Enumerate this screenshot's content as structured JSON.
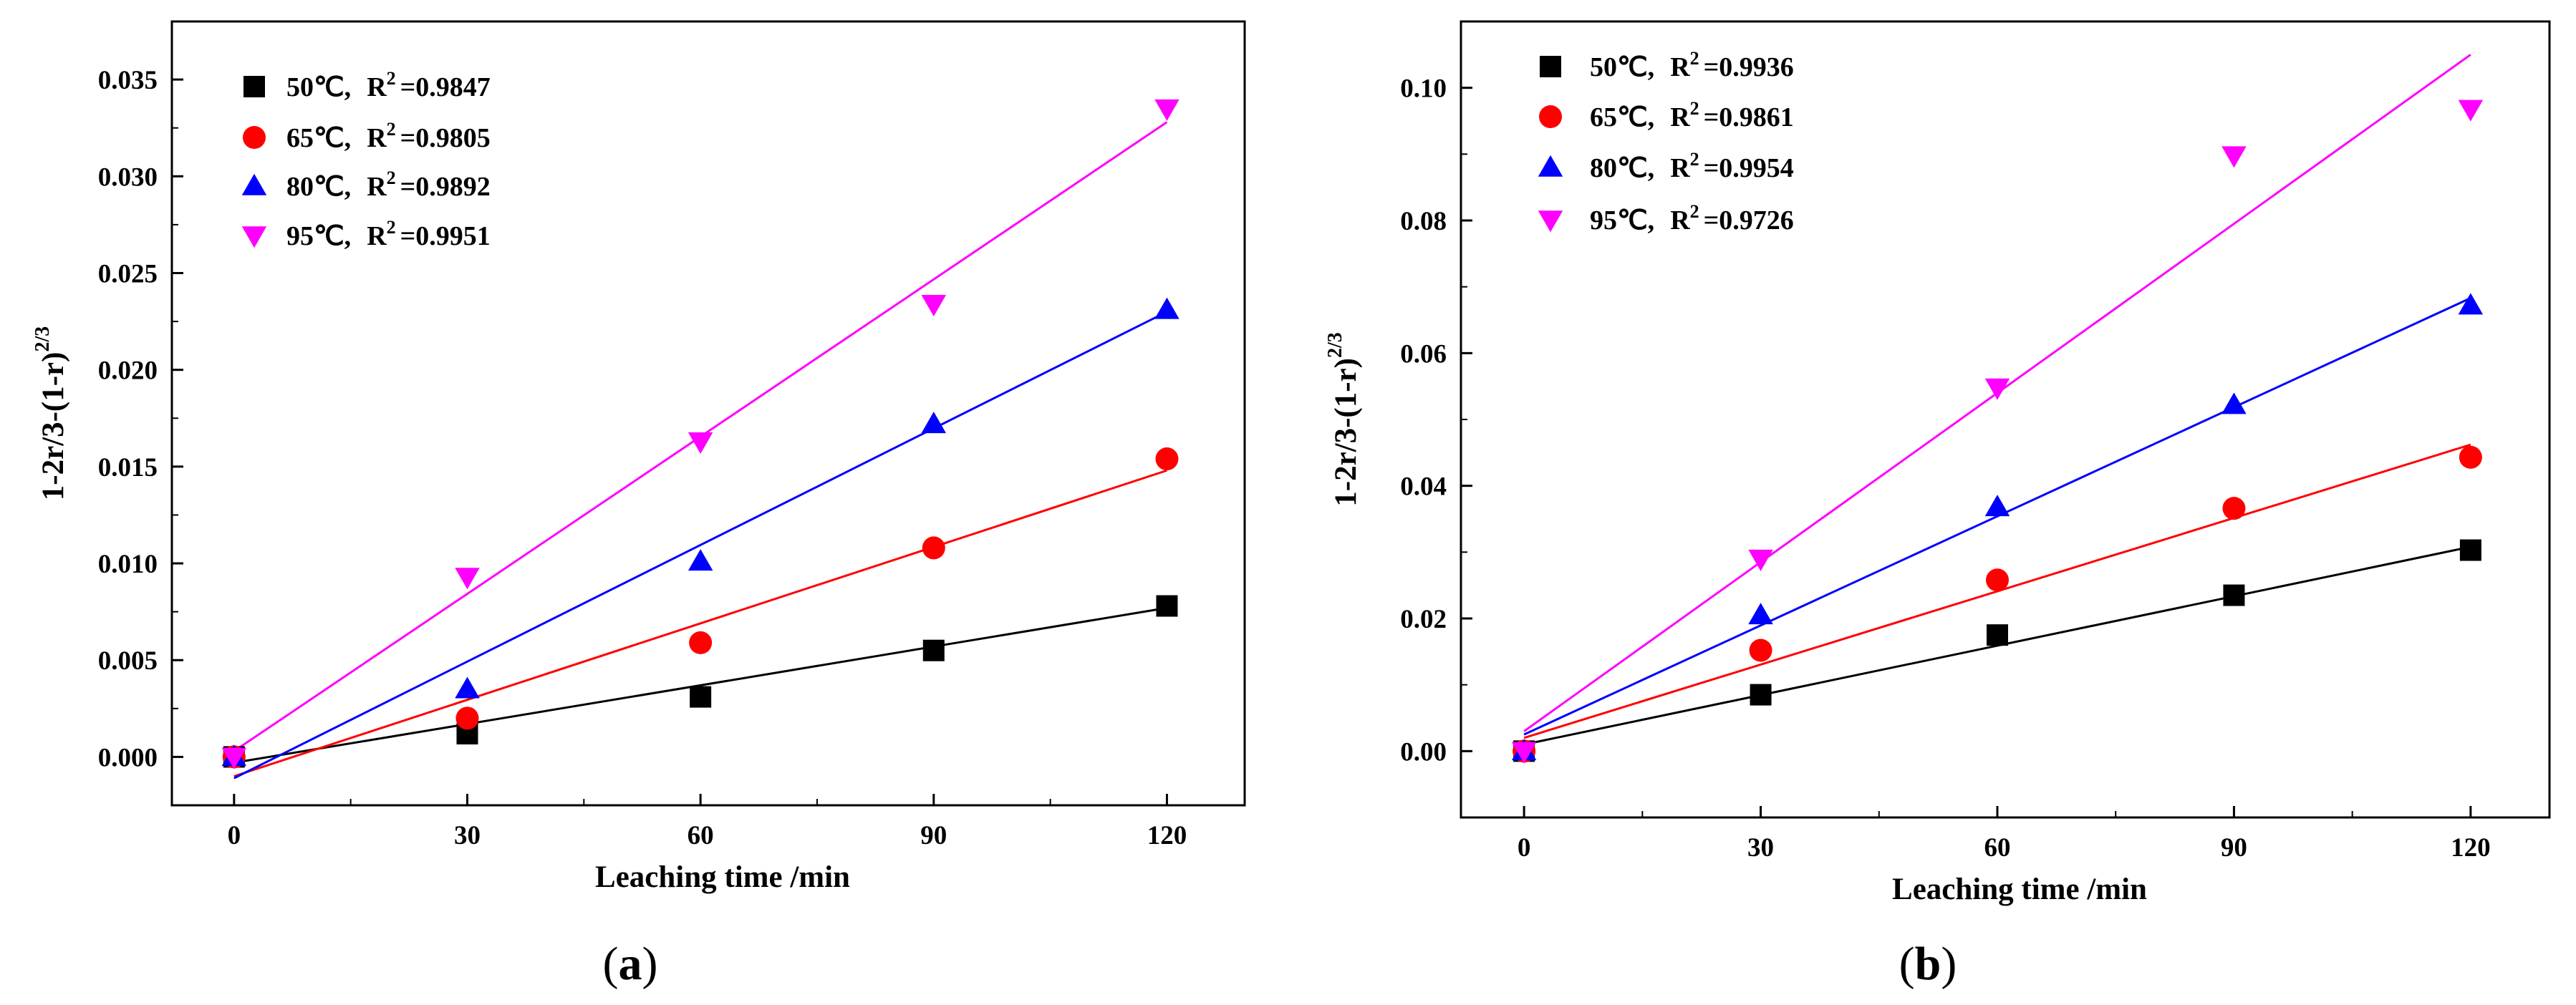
{
  "colors": {
    "black": "#000000",
    "red": "#ff0000",
    "blue": "#0000ff",
    "magenta": "#ff00ff"
  },
  "chart_data": [
    {
      "type": "scatter",
      "panel_label": "a",
      "xlabel": "Leaching time /min",
      "ylabel_main": "1-2r/3-(1-r)",
      "ylabel_exp": "2/3",
      "xlim": [
        -8,
        130
      ],
      "ylim": [
        -0.0025,
        0.038
      ],
      "x_ticks": [
        0,
        30,
        60,
        90,
        120
      ],
      "x_tick_labels": [
        "0",
        "30",
        "60",
        "90",
        "120"
      ],
      "y_ticks": [
        0,
        0.005,
        0.01,
        0.015,
        0.02,
        0.025,
        0.03,
        0.035
      ],
      "y_tick_labels": [
        "0.000",
        "0.005",
        "0.010",
        "0.015",
        "0.020",
        "0.025",
        "0.030",
        "0.035"
      ],
      "x": [
        0,
        30,
        60,
        90,
        120
      ],
      "legend_position": "top-left",
      "series": [
        {
          "name": "50℃",
          "temp": "50℃,",
          "r2_prefix": "R",
          "r2_sup": "2",
          "r2_value": "=0.9847",
          "color": "#000000",
          "marker": "square",
          "values": [
            0.0,
            0.0012,
            0.0031,
            0.0055,
            0.0078
          ],
          "fit": [
            -0.0003,
            0.0077
          ]
        },
        {
          "name": "65℃",
          "temp": "65℃,",
          "r2_prefix": "R",
          "r2_sup": "2",
          "r2_value": "=0.9805",
          "color": "#ff0000",
          "marker": "circle",
          "values": [
            0.0,
            0.002,
            0.0059,
            0.0108,
            0.0154
          ],
          "fit": [
            -0.001,
            0.0148
          ]
        },
        {
          "name": "80℃",
          "temp": "80℃,",
          "r2_prefix": "R",
          "r2_sup": "2",
          "r2_value": "=0.9892",
          "color": "#0000ff",
          "marker": "triangle-up",
          "values": [
            0.0,
            0.0035,
            0.0101,
            0.0172,
            0.0231
          ],
          "fit": [
            -0.0011,
            0.023
          ]
        },
        {
          "name": "95℃",
          "temp": "95℃,",
          "r2_prefix": "R",
          "r2_sup": "2",
          "r2_value": "=0.9951",
          "color": "#ff00ff",
          "marker": "triangle-down",
          "values": [
            0.0,
            0.0093,
            0.0163,
            0.0234,
            0.0335
          ],
          "fit": [
            0.0003,
            0.0328
          ]
        }
      ]
    },
    {
      "type": "scatter",
      "panel_label": "b",
      "xlabel": "Leaching time /min",
      "ylabel_main": "1-2r/3-(1-r)",
      "ylabel_exp": "2/3",
      "xlim": [
        -8,
        130
      ],
      "ylim": [
        -0.01,
        0.11
      ],
      "x_ticks": [
        0,
        30,
        60,
        90,
        120
      ],
      "x_tick_labels": [
        "0",
        "30",
        "60",
        "90",
        "120"
      ],
      "y_ticks": [
        0,
        0.02,
        0.04,
        0.06,
        0.08,
        0.1
      ],
      "y_tick_labels": [
        "0.00",
        "0.02",
        "0.04",
        "0.06",
        "0.08",
        "0.10"
      ],
      "x": [
        0,
        30,
        60,
        90,
        120
      ],
      "legend_position": "top-left",
      "series": [
        {
          "name": "50℃",
          "temp": "50℃,",
          "r2_prefix": "R",
          "r2_sup": "2",
          "r2_value": "=0.9936",
          "color": "#000000",
          "marker": "square",
          "values": [
            0.0,
            0.0085,
            0.0175,
            0.0235,
            0.0303
          ],
          "fit": [
            0.001,
            0.0308
          ]
        },
        {
          "name": "65℃",
          "temp": "65℃,",
          "r2_prefix": "R",
          "r2_sup": "2",
          "r2_value": "=0.9861",
          "color": "#ff0000",
          "marker": "circle",
          "values": [
            0.0,
            0.0152,
            0.0258,
            0.0366,
            0.0443
          ],
          "fit": [
            0.002,
            0.0462
          ]
        },
        {
          "name": "80℃",
          "temp": "80℃,",
          "r2_prefix": "R",
          "r2_sup": "2",
          "r2_value": "=0.9954",
          "color": "#0000ff",
          "marker": "triangle-up",
          "values": [
            0.0,
            0.0205,
            0.0368,
            0.0522,
            0.0672
          ],
          "fit": [
            0.0025,
            0.0683
          ]
        },
        {
          "name": "95℃",
          "temp": "95℃,",
          "r2_prefix": "R",
          "r2_sup": "2",
          "r2_value": "=0.9726",
          "color": "#ff00ff",
          "marker": "triangle-down",
          "values": [
            0.0,
            0.029,
            0.0548,
            0.0898,
            0.0968
          ],
          "fit": [
            0.003,
            0.105
          ]
        }
      ]
    }
  ]
}
